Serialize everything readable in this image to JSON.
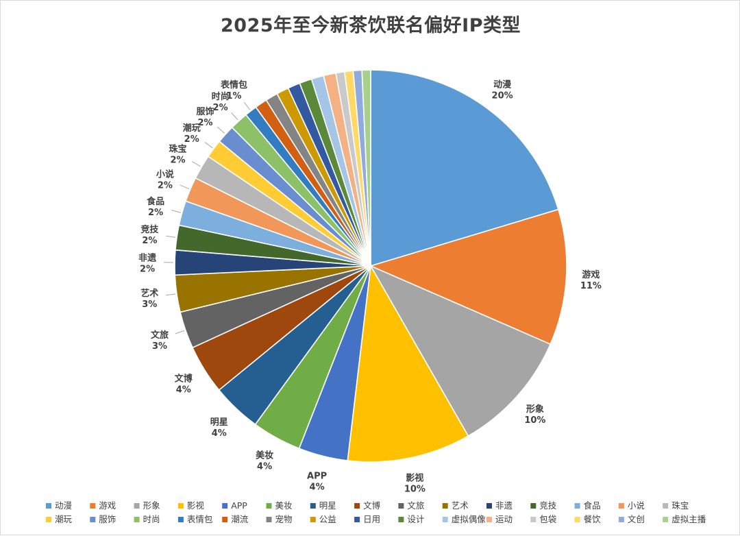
{
  "chart_data": {
    "type": "pie",
    "title": "2025年至今新茶饮联名偏好IP类型",
    "legend_position": "bottom",
    "slices": [
      {
        "name": "动漫",
        "value": 20,
        "label": "20%",
        "color": "#5B9BD5",
        "show_label": true
      },
      {
        "name": "游戏",
        "value": 11,
        "label": "11%",
        "color": "#ED7D31",
        "show_label": true
      },
      {
        "name": "形象",
        "value": 10,
        "label": "10%",
        "color": "#A5A5A5",
        "show_label": true
      },
      {
        "name": "影视",
        "value": 10,
        "label": "10%",
        "color": "#FFC000",
        "show_label": true
      },
      {
        "name": "APP",
        "value": 4,
        "label": "4%",
        "color": "#4472C4",
        "show_label": true
      },
      {
        "name": "美妆",
        "value": 4,
        "label": "4%",
        "color": "#70AD47",
        "show_label": true
      },
      {
        "name": "明星",
        "value": 4,
        "label": "4%",
        "color": "#255E91",
        "show_label": true
      },
      {
        "name": "文博",
        "value": 4,
        "label": "4%",
        "color": "#9E480E",
        "show_label": true
      },
      {
        "name": "文旅",
        "value": 3,
        "label": "3%",
        "color": "#636363",
        "show_label": true
      },
      {
        "name": "艺术",
        "value": 3,
        "label": "3%",
        "color": "#997300",
        "show_label": true
      },
      {
        "name": "非遗",
        "value": 2,
        "label": "2%",
        "color": "#264478",
        "show_label": true
      },
      {
        "name": "竞技",
        "value": 2,
        "label": "2%",
        "color": "#43682B",
        "show_label": true
      },
      {
        "name": "食品",
        "value": 2,
        "label": "2%",
        "color": "#7CAFDD",
        "show_label": true
      },
      {
        "name": "小说",
        "value": 2,
        "label": "2%",
        "color": "#F1975A",
        "show_label": true
      },
      {
        "name": "珠宝",
        "value": 2,
        "label": "2%",
        "color": "#B7B7B7",
        "show_label": true
      },
      {
        "name": "潮玩",
        "value": 1.5,
        "label": "2%",
        "color": "#FFCD33",
        "show_label": true
      },
      {
        "name": "服饰",
        "value": 1.5,
        "label": "2%",
        "color": "#698ED0",
        "show_label": true
      },
      {
        "name": "时尚",
        "value": 1.5,
        "label": "2%",
        "color": "#8CC168",
        "show_label": true
      },
      {
        "name": "表情包",
        "value": 1,
        "label": "1%",
        "color": "#327DC2",
        "show_label": true
      },
      {
        "name": "潮流",
        "value": 1,
        "label": "",
        "color": "#D26012",
        "show_label": false
      },
      {
        "name": "宠物",
        "value": 1,
        "label": "",
        "color": "#848484",
        "show_label": false
      },
      {
        "name": "公益",
        "value": 1,
        "label": "",
        "color": "#CC9A00",
        "show_label": false
      },
      {
        "name": "日用",
        "value": 1,
        "label": "",
        "color": "#335AA1",
        "show_label": false
      },
      {
        "name": "设计",
        "value": 1,
        "label": "",
        "color": "#5A8A39",
        "show_label": false
      },
      {
        "name": "虚拟偶像",
        "value": 1,
        "label": "",
        "color": "#A5C5E6",
        "show_label": false
      },
      {
        "name": "运动",
        "value": 1,
        "label": "",
        "color": "#F4B183",
        "show_label": false
      },
      {
        "name": "包袋",
        "value": 0.7,
        "label": "",
        "color": "#C9C9C9",
        "show_label": false
      },
      {
        "name": "餐饮",
        "value": 0.7,
        "label": "",
        "color": "#FFD966",
        "show_label": false
      },
      {
        "name": "文创",
        "value": 0.7,
        "label": "",
        "color": "#8FAADC",
        "show_label": false
      },
      {
        "name": "虚拟主播",
        "value": 0.7,
        "label": "",
        "color": "#A9D18E",
        "show_label": false
      }
    ]
  }
}
